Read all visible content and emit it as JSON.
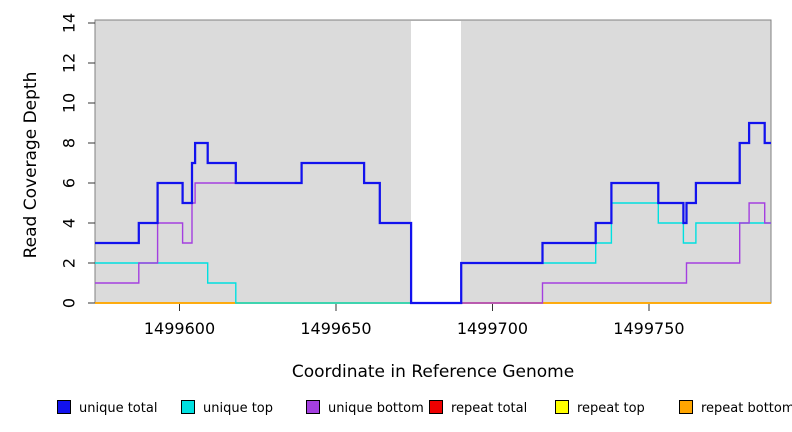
{
  "chart_data": {
    "type": "line",
    "subtype": "step-coverage-plot",
    "title": "",
    "xlabel": "Coordinate in Reference Genome",
    "ylabel": "Read Coverage Depth",
    "xlim": [
      1499573,
      1499789
    ],
    "ylim": [
      0,
      14
    ],
    "x_ticks": [
      1499600,
      1499650,
      1499700,
      1499750
    ],
    "y_ticks": [
      0,
      2,
      4,
      6,
      8,
      10,
      12,
      14
    ],
    "grid": false,
    "legend_position": "bottom",
    "plot_background": "#dbdbdb",
    "border_color": "#808080",
    "tick_color": "#333333",
    "gap_region": {
      "start": 1499674,
      "end": 1499690,
      "color": "#ffffff"
    },
    "draw_order": [
      3,
      4,
      5,
      1,
      2,
      0
    ],
    "series": [
      {
        "name": "unique total",
        "color": "#1212ee",
        "stroke_width": 2.25,
        "steps": [
          [
            1499573,
            3
          ],
          [
            1499587,
            4
          ],
          [
            1499593,
            6
          ],
          [
            1499601,
            5
          ],
          [
            1499604,
            7
          ],
          [
            1499605,
            8
          ],
          [
            1499609,
            7
          ],
          [
            1499618,
            6
          ],
          [
            1499639,
            7
          ],
          [
            1499659,
            6
          ],
          [
            1499664,
            4
          ],
          [
            1499674,
            0
          ],
          [
            1499690,
            2
          ],
          [
            1499716,
            3
          ],
          [
            1499733,
            4
          ],
          [
            1499738,
            6
          ],
          [
            1499753,
            5
          ],
          [
            1499761,
            4
          ],
          [
            1499762,
            5
          ],
          [
            1499765,
            6
          ],
          [
            1499779,
            8
          ],
          [
            1499782,
            9
          ],
          [
            1499787,
            8
          ]
        ]
      },
      {
        "name": "unique top",
        "color": "#00e0e0",
        "stroke_width": 1.4,
        "steps": [
          [
            1499573,
            2
          ],
          [
            1499609,
            1
          ],
          [
            1499618,
            0
          ],
          [
            1499690,
            2
          ],
          [
            1499733,
            3
          ],
          [
            1499738,
            5
          ],
          [
            1499753,
            4
          ],
          [
            1499761,
            3
          ],
          [
            1499765,
            4
          ]
        ]
      },
      {
        "name": "unique bottom",
        "color": "#a43fe0",
        "stroke_width": 1.4,
        "steps": [
          [
            1499573,
            1
          ],
          [
            1499587,
            2
          ],
          [
            1499593,
            4
          ],
          [
            1499601,
            3
          ],
          [
            1499604,
            5
          ],
          [
            1499605,
            6
          ],
          [
            1499639,
            7
          ],
          [
            1499659,
            6
          ],
          [
            1499664,
            4
          ],
          [
            1499674,
            0
          ],
          [
            1499716,
            1
          ],
          [
            1499762,
            2
          ],
          [
            1499779,
            4
          ],
          [
            1499782,
            5
          ],
          [
            1499787,
            4
          ]
        ]
      },
      {
        "name": "repeat total",
        "color": "#ee0000",
        "stroke_width": 1.4,
        "steps": [
          [
            1499573,
            0
          ]
        ]
      },
      {
        "name": "repeat top",
        "color": "#ffff00",
        "stroke_width": 1.4,
        "steps": [
          [
            1499573,
            0
          ]
        ]
      },
      {
        "name": "repeat bottom",
        "color": "#ffa500",
        "stroke_width": 1.6,
        "steps": [
          [
            1499573,
            0
          ]
        ]
      }
    ]
  }
}
